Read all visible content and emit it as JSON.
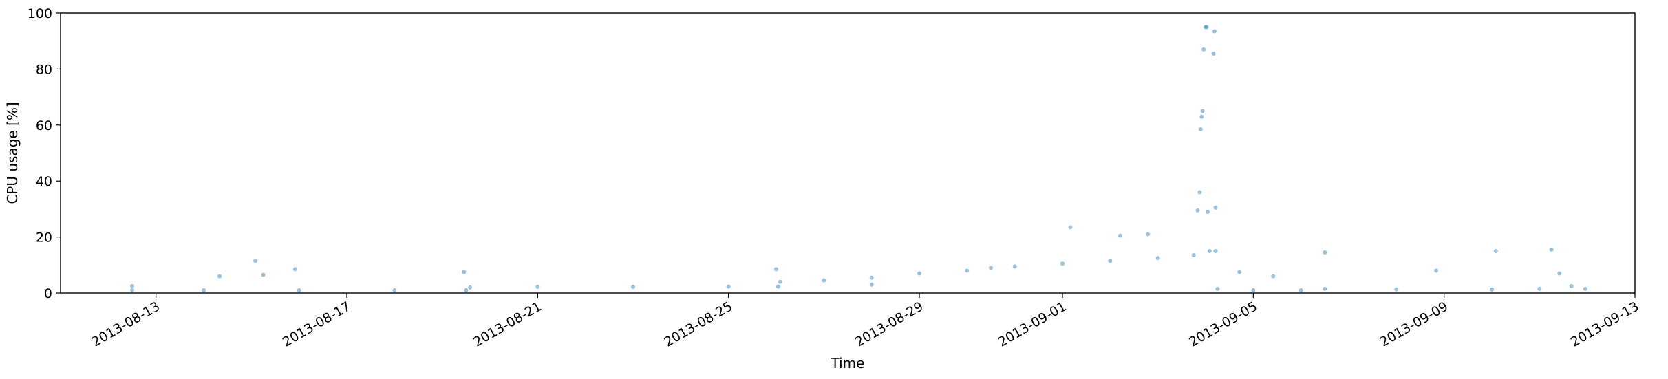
{
  "chart_data": {
    "type": "scatter",
    "title": "",
    "xlabel": "Time",
    "ylabel": "CPU usage [%]",
    "xlim": [
      "2013-08-11",
      "2013-09-13"
    ],
    "ylim": [
      0,
      100
    ],
    "x_ticks": [
      "2013-08-13",
      "2013-08-17",
      "2013-08-21",
      "2013-08-25",
      "2013-08-29",
      "2013-09-01",
      "2013-09-05",
      "2013-09-09",
      "2013-09-13"
    ],
    "y_ticks": [
      0,
      20,
      40,
      60,
      80,
      100
    ],
    "grid": false,
    "legend": "none",
    "marker_color": "#1f77b4",
    "marker_alpha": 0.45,
    "series": [
      {
        "x": [
          "2013-08-12 12:00",
          "2013-08-14 00:00",
          "2013-08-16 00:00",
          "2013-08-18 00:00",
          "2013-08-19 12:00",
          "2013-08-19 14:00",
          "2013-08-21 00:00",
          "2013-08-23 00:00",
          "2013-08-25 00:00",
          "2013-08-26 01:00",
          "2013-08-26 02:00",
          "2013-08-27 00:00",
          "2013-08-28 00:00",
          "2013-08-29 00:00",
          "2013-08-30 00:00",
          "2013-08-30 12:00",
          "2013-08-31 00:00",
          "2013-09-01 00:00",
          "2013-09-02 00:00",
          "2013-09-03 00:00",
          "2013-09-03 18:00",
          "2013-09-04 02:00",
          "2013-09-04 05:00",
          "2013-09-04 06:00",
          "2013-09-05 00:00",
          "2013-09-06 00:00",
          "2013-09-06 12:00",
          "2013-09-08 00:00",
          "2013-09-10 00:00",
          "2013-09-11 00:00",
          "2013-09-11 23:00"
        ],
        "y": [
          1.0,
          1.0,
          1.0,
          1.0,
          1.0,
          2.0,
          2.2,
          2.2,
          2.3,
          2.3,
          4.0,
          4.5,
          5.5,
          7.0,
          8.0,
          9.0,
          9.5,
          10.5,
          11.5,
          12.5,
          13.5,
          15.0,
          15.0,
          1.5,
          1.0,
          1.0,
          1.5,
          1.3,
          1.3,
          1.5,
          1.5
        ]
      },
      {
        "x": [
          "2013-08-12 12:00",
          "2013-08-14 08:00",
          "2013-08-15 02:00",
          "2013-08-15 06:00",
          "2013-08-15 22:00",
          "2013-08-19 11:00",
          "2013-08-26 00:00",
          "2013-08-28 00:00",
          "2013-09-01 04:00",
          "2013-09-02 05:00",
          "2013-09-02 19:00",
          "2013-09-03 20:00",
          "2013-09-03 21:00",
          "2013-09-03 21:30",
          "2013-09-03 22:00",
          "2013-09-03 22:30",
          "2013-09-03 23:00",
          "2013-09-04 00:00",
          "2013-09-04 00:30",
          "2013-09-04 01:00",
          "2013-09-04 04:00",
          "2013-09-04 04:30",
          "2013-09-04 05:00",
          "2013-09-04 17:00",
          "2013-09-05 10:00",
          "2013-09-06 12:00",
          "2013-09-08 20:00",
          "2013-09-10 02:00",
          "2013-09-11 06:00",
          "2013-09-11 10:00",
          "2013-09-11 16:00"
        ],
        "y": [
          2.5,
          6.0,
          11.5,
          6.5,
          8.5,
          7.5,
          8.5,
          3.0,
          23.5,
          20.5,
          21.0,
          29.5,
          36.0,
          58.5,
          63.0,
          65.0,
          87.0,
          95.0,
          95.0,
          29.0,
          85.5,
          93.5,
          30.5,
          7.5,
          6.0,
          14.5,
          8.0,
          15.0,
          15.5,
          7.0,
          2.5
        ]
      }
    ]
  }
}
